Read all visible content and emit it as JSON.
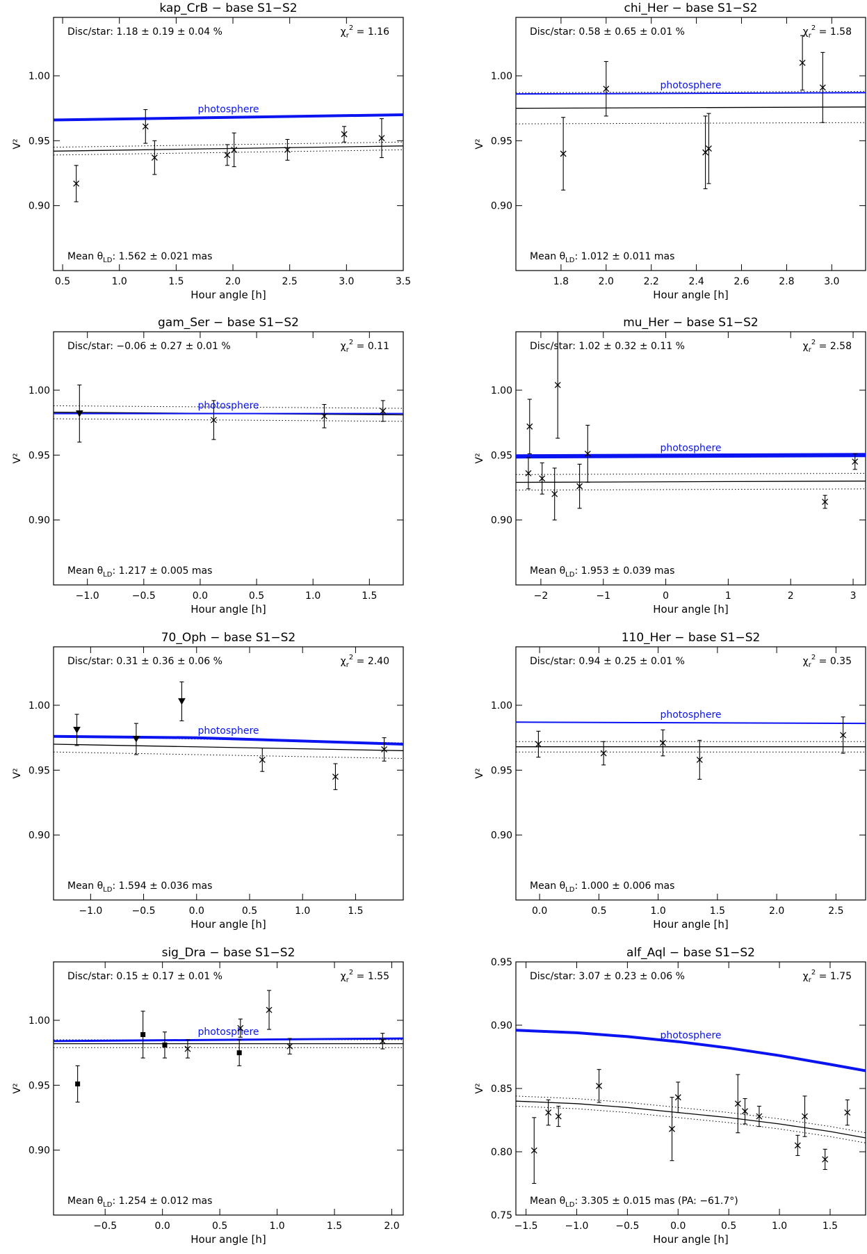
{
  "figure": {
    "photosphere_label": "photosphere",
    "xlabel": "Hour angle [h]",
    "ylabel": "V²",
    "line_color": "#0a14f0"
  },
  "chart_data": [
    {
      "type": "scatter",
      "title": "kap_CrB − base S1−S2",
      "disc": "Disc/star:  1.18 ± 0.19 ± 0.04 %",
      "chi2": "1.16",
      "mean_prefix": "Mean ",
      "mean_value": ": 1.562 ± 0.021 mas",
      "xlim": [
        0.42,
        3.5
      ],
      "ylim": [
        0.85,
        1.045
      ],
      "xticks": [
        0.5,
        1.0,
        1.5,
        2.0,
        2.5,
        3.0,
        3.5
      ],
      "xtick_labels": [
        "0.5",
        "1.0",
        "1.5",
        "2.0",
        "2.5",
        "3.0",
        "3.5"
      ],
      "yticks": [
        0.9,
        0.95,
        1.0
      ],
      "ytick_labels": [
        "0.90",
        "0.95",
        "1.00"
      ],
      "photosphere": {
        "x": [
          0.42,
          3.5
        ],
        "y": [
          0.966,
          0.97
        ],
        "weight": 4
      },
      "model": {
        "x": [
          0.42,
          3.5
        ],
        "y": [
          0.942,
          0.946
        ],
        "band": 0.003
      },
      "points": [
        {
          "x": 0.62,
          "y": 0.917,
          "err": 0.014,
          "marker": "x"
        },
        {
          "x": 1.23,
          "y": 0.961,
          "err": 0.013,
          "marker": "x"
        },
        {
          "x": 1.31,
          "y": 0.937,
          "err": 0.013,
          "marker": "x"
        },
        {
          "x": 1.95,
          "y": 0.939,
          "err": 0.008,
          "marker": "x"
        },
        {
          "x": 2.01,
          "y": 0.943,
          "err": 0.013,
          "marker": "x"
        },
        {
          "x": 2.48,
          "y": 0.943,
          "err": 0.008,
          "marker": "x"
        },
        {
          "x": 2.98,
          "y": 0.955,
          "err": 0.006,
          "marker": "x"
        },
        {
          "x": 3.31,
          "y": 0.952,
          "err": 0.015,
          "marker": "x"
        }
      ]
    },
    {
      "type": "scatter",
      "title": "chi_Her − base S1−S2",
      "disc": "Disc/star:  0.58 ± 0.65 ± 0.01 %",
      "chi2": "1.58",
      "mean_prefix": "Mean ",
      "mean_value": ": 1.012 ± 0.011 mas",
      "xlim": [
        1.6,
        3.15
      ],
      "ylim": [
        0.85,
        1.045
      ],
      "xticks": [
        1.8,
        2.0,
        2.2,
        2.4,
        2.6,
        2.8,
        3.0
      ],
      "xtick_labels": [
        "1.8",
        "2.0",
        "2.2",
        "2.4",
        "2.6",
        "2.8",
        "3.0"
      ],
      "yticks": [
        0.9,
        0.95,
        1.0
      ],
      "ytick_labels": [
        "0.90",
        "0.95",
        "1.00"
      ],
      "photosphere": {
        "x": [
          1.6,
          3.15
        ],
        "y": [
          0.986,
          0.987
        ],
        "weight": 2
      },
      "model": {
        "x": [
          1.6,
          3.15
        ],
        "y": [
          0.975,
          0.976
        ],
        "band": 0.012
      },
      "points": [
        {
          "x": 1.81,
          "y": 0.94,
          "err": 0.028,
          "marker": "x"
        },
        {
          "x": 2.0,
          "y": 0.99,
          "err": 0.021,
          "marker": "x"
        },
        {
          "x": 2.44,
          "y": 0.941,
          "err": 0.028,
          "marker": "x"
        },
        {
          "x": 2.455,
          "y": 0.944,
          "err": 0.027,
          "marker": "x"
        },
        {
          "x": 2.87,
          "y": 1.01,
          "err": 0.021,
          "marker": "x"
        },
        {
          "x": 2.96,
          "y": 0.991,
          "err": 0.027,
          "marker": "x"
        }
      ]
    },
    {
      "type": "scatter",
      "title": "gam_Ser − base S1−S2",
      "disc": "Disc/star:  −0.06 ± 0.27 ± 0.01 %",
      "chi2": "0.11",
      "mean_prefix": "Mean ",
      "mean_value": ": 1.217 ± 0.005 mas",
      "xlim": [
        -1.3,
        1.8
      ],
      "ylim": [
        0.85,
        1.045
      ],
      "xticks": [
        -1.0,
        -0.5,
        0.0,
        0.5,
        1.0,
        1.5
      ],
      "xtick_labels": [
        "−1.0",
        "−0.5",
        "0.0",
        "0.5",
        "1.0",
        "1.5"
      ],
      "yticks": [
        0.9,
        0.95,
        1.0
      ],
      "ytick_labels": [
        "0.90",
        "0.95",
        "1.00"
      ],
      "photosphere": {
        "x": [
          -1.3,
          1.8
        ],
        "y": [
          0.982,
          0.982
        ],
        "weight": 2
      },
      "model": {
        "x": [
          -1.3,
          1.8
        ],
        "y": [
          0.983,
          0.981
        ],
        "band": 0.005
      },
      "points": [
        {
          "x": -1.07,
          "y": 0.982,
          "err": 0.022,
          "marker": "tri"
        },
        {
          "x": 0.12,
          "y": 0.977,
          "err": 0.015,
          "marker": "x"
        },
        {
          "x": 1.1,
          "y": 0.98,
          "err": 0.009,
          "marker": "x"
        },
        {
          "x": 1.62,
          "y": 0.984,
          "err": 0.008,
          "marker": "x"
        }
      ]
    },
    {
      "type": "scatter",
      "title": "mu_Her − base S1−S2",
      "disc": "Disc/star:  1.02 ± 0.32 ± 0.11 %",
      "chi2": "2.58",
      "mean_prefix": "Mean ",
      "mean_value": ": 1.953 ± 0.039 mas",
      "xlim": [
        -2.4,
        3.2
      ],
      "ylim": [
        0.85,
        1.045
      ],
      "xticks": [
        -2,
        -1,
        0,
        1,
        2,
        3
      ],
      "xtick_labels": [
        "−2",
        "−1",
        "0",
        "1",
        "2",
        "3"
      ],
      "yticks": [
        0.9,
        0.95,
        1.0
      ],
      "ytick_labels": [
        "0.90",
        "0.95",
        "1.00"
      ],
      "photosphere": {
        "x": [
          -2.4,
          3.2
        ],
        "y": [
          0.949,
          0.95
        ],
        "weight": 6
      },
      "model": {
        "x": [
          -2.4,
          3.2
        ],
        "y": [
          0.929,
          0.93
        ],
        "band": 0.006
      },
      "points": [
        {
          "x": -2.18,
          "y": 0.972,
          "err": 0.021,
          "marker": "x"
        },
        {
          "x": -2.2,
          "y": 0.936,
          "err": 0.012,
          "marker": "x"
        },
        {
          "x": -1.98,
          "y": 0.932,
          "err": 0.012,
          "marker": "x"
        },
        {
          "x": -1.73,
          "y": 1.004,
          "err": 0.041,
          "marker": "x"
        },
        {
          "x": -1.78,
          "y": 0.92,
          "err": 0.02,
          "marker": "x"
        },
        {
          "x": -1.25,
          "y": 0.951,
          "err": 0.022,
          "marker": "x"
        },
        {
          "x": -1.38,
          "y": 0.926,
          "err": 0.017,
          "marker": "x"
        },
        {
          "x": 2.55,
          "y": 0.914,
          "err": 0.005,
          "marker": "x"
        },
        {
          "x": 3.03,
          "y": 0.945,
          "err": 0.006,
          "marker": "x"
        }
      ]
    },
    {
      "type": "scatter",
      "title": "70_Oph − base S1−S2",
      "disc": "Disc/star:  0.31 ± 0.36 ± 0.06 %",
      "chi2": "2.40",
      "mean_prefix": "Mean ",
      "mean_value": ": 1.594 ± 0.036 mas",
      "xlim": [
        -1.35,
        1.95
      ],
      "ylim": [
        0.85,
        1.045
      ],
      "xticks": [
        -1.0,
        -0.5,
        0.0,
        0.5,
        1.0,
        1.5
      ],
      "xtick_labels": [
        "−1.0",
        "−0.5",
        "0.0",
        "0.5",
        "1.0",
        "1.5"
      ],
      "yticks": [
        0.9,
        0.95,
        1.0
      ],
      "ytick_labels": [
        "0.90",
        "0.95",
        "1.00"
      ],
      "photosphere": {
        "x": [
          -1.35,
          0.0,
          1.95
        ],
        "y": [
          0.976,
          0.975,
          0.97
        ],
        "weight": 4
      },
      "model": {
        "x": [
          -1.35,
          1.95
        ],
        "y": [
          0.97,
          0.965
        ],
        "band": 0.006
      },
      "points": [
        {
          "x": -1.13,
          "y": 0.981,
          "err": 0.012,
          "marker": "tri"
        },
        {
          "x": -0.57,
          "y": 0.974,
          "err": 0.012,
          "marker": "tri"
        },
        {
          "x": -0.14,
          "y": 1.003,
          "err": 0.015,
          "marker": "tri"
        },
        {
          "x": 0.62,
          "y": 0.958,
          "err": 0.009,
          "marker": "x"
        },
        {
          "x": 1.31,
          "y": 0.945,
          "err": 0.01,
          "marker": "x"
        },
        {
          "x": 1.77,
          "y": 0.966,
          "err": 0.009,
          "marker": "x"
        }
      ]
    },
    {
      "type": "scatter",
      "title": "110_Her − base S1−S2",
      "disc": "Disc/star:  0.94 ± 0.25 ± 0.01 %",
      "chi2": "0.35",
      "mean_prefix": "Mean ",
      "mean_value": ": 1.000 ± 0.006 mas",
      "xlim": [
        -0.2,
        2.75
      ],
      "ylim": [
        0.85,
        1.045
      ],
      "xticks": [
        0.0,
        0.5,
        1.0,
        1.5,
        2.0,
        2.5
      ],
      "xtick_labels": [
        "0.0",
        "0.5",
        "1.0",
        "1.5",
        "2.0",
        "2.5"
      ],
      "yticks": [
        0.9,
        0.95,
        1.0
      ],
      "ytick_labels": [
        "0.90",
        "0.95",
        "1.00"
      ],
      "photosphere": {
        "x": [
          -0.2,
          2.75
        ],
        "y": [
          0.987,
          0.986
        ],
        "weight": 2
      },
      "model": {
        "x": [
          -0.2,
          2.75
        ],
        "y": [
          0.968,
          0.968
        ],
        "band": 0.004
      },
      "points": [
        {
          "x": -0.01,
          "y": 0.97,
          "err": 0.01,
          "marker": "x"
        },
        {
          "x": 0.54,
          "y": 0.963,
          "err": 0.009,
          "marker": "x"
        },
        {
          "x": 1.04,
          "y": 0.971,
          "err": 0.01,
          "marker": "x"
        },
        {
          "x": 1.35,
          "y": 0.958,
          "err": 0.015,
          "marker": "x"
        },
        {
          "x": 2.56,
          "y": 0.977,
          "err": 0.014,
          "marker": "x"
        }
      ]
    },
    {
      "type": "scatter",
      "title": "sig_Dra − base S1−S2",
      "disc": "Disc/star:  0.15 ± 0.17 ± 0.01 %",
      "chi2": "1.55",
      "mean_prefix": "Mean ",
      "mean_value": ": 1.254 ± 0.012 mas",
      "xlim": [
        -0.95,
        2.1
      ],
      "ylim": [
        0.85,
        1.045
      ],
      "xticks": [
        -0.5,
        0.0,
        0.5,
        1.0,
        1.5,
        2.0
      ],
      "xtick_labels": [
        "−0.5",
        "0.0",
        "0.5",
        "1.0",
        "1.5",
        "2.0"
      ],
      "yticks": [
        0.9,
        0.95,
        1.0
      ],
      "ytick_labels": [
        "0.90",
        "0.95",
        "1.00"
      ],
      "photosphere": {
        "x": [
          -0.95,
          2.1
        ],
        "y": [
          0.984,
          0.986
        ],
        "weight": 3
      },
      "model": {
        "x": [
          -0.95,
          2.1
        ],
        "y": [
          0.982,
          0.982
        ],
        "band": 0.003
      },
      "points": [
        {
          "x": -0.74,
          "y": 0.951,
          "err": 0.014,
          "marker": "sq"
        },
        {
          "x": -0.17,
          "y": 0.989,
          "err": 0.018,
          "marker": "sq"
        },
        {
          "x": 0.02,
          "y": 0.981,
          "err": 0.01,
          "marker": "sq"
        },
        {
          "x": 0.22,
          "y": 0.978,
          "err": 0.007,
          "marker": "x"
        },
        {
          "x": 0.67,
          "y": 0.975,
          "err": 0.01,
          "marker": "sq"
        },
        {
          "x": 0.68,
          "y": 0.994,
          "err": 0.007,
          "marker": "x"
        },
        {
          "x": 0.93,
          "y": 1.008,
          "err": 0.015,
          "marker": "x"
        },
        {
          "x": 1.11,
          "y": 0.98,
          "err": 0.006,
          "marker": "x"
        },
        {
          "x": 1.92,
          "y": 0.984,
          "err": 0.006,
          "marker": "x"
        }
      ]
    },
    {
      "type": "scatter",
      "title": "alf_Aql − base S1−S2",
      "disc": "Disc/star:  3.07 ± 0.23 ± 0.06 %",
      "chi2": "1.75",
      "mean_prefix": "Mean ",
      "mean_value": ": 3.305 ± 0.015 mas (PA: −61.7°)",
      "xlim": [
        -1.6,
        1.85
      ],
      "ylim": [
        0.75,
        0.95
      ],
      "xticks": [
        -1.5,
        -1.0,
        -0.5,
        0.0,
        0.5,
        1.0,
        1.5
      ],
      "xtick_labels": [
        "−1.5",
        "−1.0",
        "−0.5",
        "0.0",
        "0.5",
        "1.0",
        "1.5"
      ],
      "yticks": [
        0.75,
        0.8,
        0.85,
        0.9,
        0.95
      ],
      "ytick_labels": [
        "0.75",
        "0.80",
        "0.85",
        "0.90",
        "0.95"
      ],
      "photosphere": {
        "x": [
          -1.6,
          -1.0,
          -0.5,
          0.0,
          0.5,
          1.0,
          1.5,
          1.85
        ],
        "y": [
          0.896,
          0.894,
          0.891,
          0.887,
          0.882,
          0.876,
          0.869,
          0.864
        ],
        "weight": 4
      },
      "model": {
        "x": [
          -1.6,
          -1.0,
          -0.5,
          0.0,
          0.5,
          1.0,
          1.5,
          1.85
        ],
        "y": [
          0.84,
          0.838,
          0.835,
          0.831,
          0.827,
          0.822,
          0.816,
          0.811
        ],
        "band": 0.004
      },
      "points": [
        {
          "x": -1.42,
          "y": 0.801,
          "err": 0.026,
          "marker": "x"
        },
        {
          "x": -1.28,
          "y": 0.831,
          "err": 0.01,
          "marker": "x"
        },
        {
          "x": -1.18,
          "y": 0.828,
          "err": 0.008,
          "marker": "x"
        },
        {
          "x": -0.78,
          "y": 0.852,
          "err": 0.013,
          "marker": "x"
        },
        {
          "x": -0.06,
          "y": 0.818,
          "err": 0.025,
          "marker": "x"
        },
        {
          "x": 0.0,
          "y": 0.843,
          "err": 0.012,
          "marker": "x"
        },
        {
          "x": 0.59,
          "y": 0.838,
          "err": 0.023,
          "marker": "x"
        },
        {
          "x": 0.66,
          "y": 0.832,
          "err": 0.01,
          "marker": "x"
        },
        {
          "x": 0.8,
          "y": 0.828,
          "err": 0.008,
          "marker": "x"
        },
        {
          "x": 1.18,
          "y": 0.805,
          "err": 0.008,
          "marker": "x"
        },
        {
          "x": 1.25,
          "y": 0.828,
          "err": 0.016,
          "marker": "x"
        },
        {
          "x": 1.45,
          "y": 0.794,
          "err": 0.008,
          "marker": "x"
        },
        {
          "x": 1.67,
          "y": 0.831,
          "err": 0.01,
          "marker": "x"
        }
      ]
    }
  ]
}
